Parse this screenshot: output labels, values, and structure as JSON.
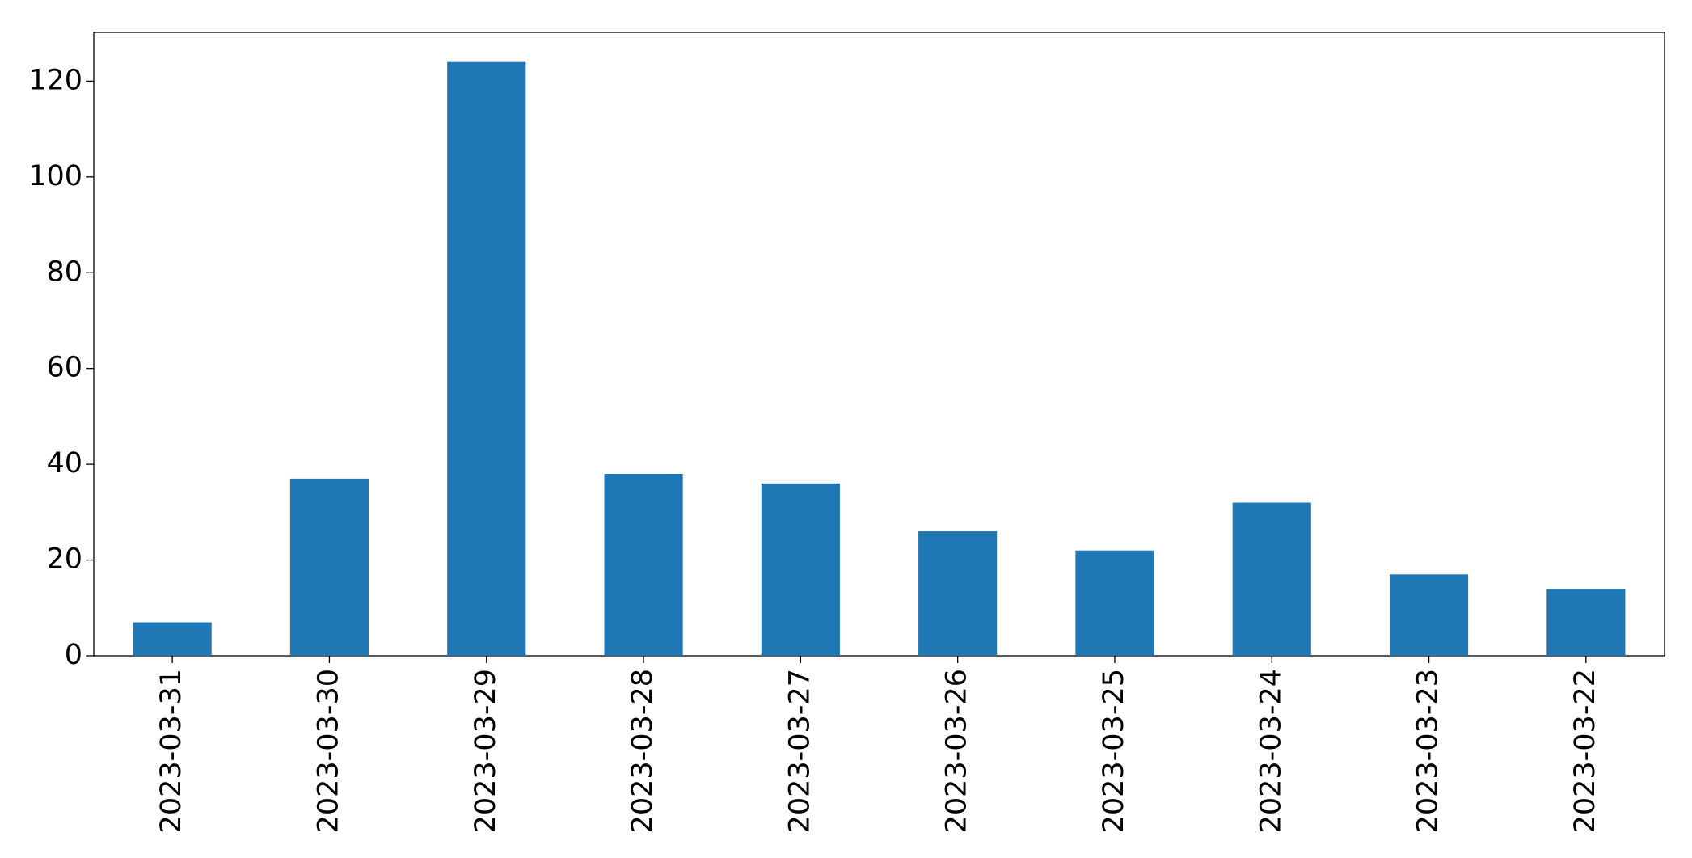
{
  "chart_data": {
    "type": "bar",
    "categories": [
      "2023-03-31",
      "2023-03-30",
      "2023-03-29",
      "2023-03-28",
      "2023-03-27",
      "2023-03-26",
      "2023-03-25",
      "2023-03-24",
      "2023-03-23",
      "2023-03-22"
    ],
    "values": [
      7,
      37,
      124,
      38,
      36,
      26,
      22,
      32,
      17,
      14
    ],
    "color": "#1f77b4",
    "ylim": [
      0,
      130.2
    ],
    "yticks": [
      0,
      20,
      40,
      60,
      80,
      100,
      120
    ],
    "grid": false
  }
}
